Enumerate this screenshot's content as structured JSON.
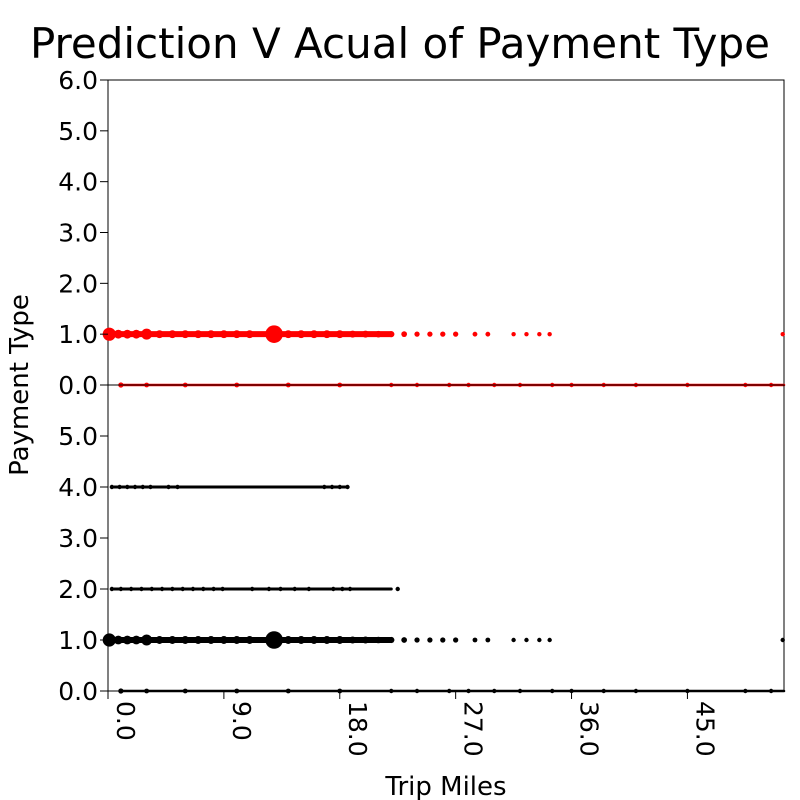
{
  "chart_data": {
    "type": "scatter",
    "title": "Prediction V Acual of Payment Type",
    "xlabel": "Trip Miles",
    "ylabel": "Payment Type",
    "xlim": [
      0,
      52.5
    ],
    "xticks": [
      "0.0",
      "9.0",
      "18.0",
      "27.0",
      "36.0",
      "45.0"
    ],
    "xtick_values": [
      0,
      9,
      18,
      27,
      36,
      45
    ],
    "grid": false,
    "legend": false,
    "panels": [
      {
        "name": "top",
        "color": "#ff0000",
        "ylim": [
          0,
          6
        ],
        "yticks": [
          "0.0",
          "1.0",
          "2.0",
          "3.0",
          "4.0",
          "5.0",
          "6.0"
        ],
        "ytick_values": [
          0,
          1,
          2,
          3,
          4,
          5,
          6
        ],
        "points": [
          {
            "x": 0.1,
            "y": 1,
            "s": 3.0
          },
          {
            "x": 3.0,
            "y": 1,
            "s": 2.5
          },
          {
            "x": 12.9,
            "y": 1,
            "s": 4.0
          },
          {
            "x": 0.8,
            "y": 1,
            "s": 2.0
          },
          {
            "x": 1.5,
            "y": 1,
            "s": 2.0
          },
          {
            "x": 2.2,
            "y": 1,
            "s": 2.0
          },
          {
            "x": 4.0,
            "y": 1,
            "s": 1.8
          },
          {
            "x": 5.0,
            "y": 1,
            "s": 1.8
          },
          {
            "x": 6.0,
            "y": 1,
            "s": 1.8
          },
          {
            "x": 7.0,
            "y": 1,
            "s": 1.8
          },
          {
            "x": 8.0,
            "y": 1,
            "s": 1.8
          },
          {
            "x": 9.0,
            "y": 1,
            "s": 1.8
          },
          {
            "x": 10.0,
            "y": 1,
            "s": 1.8
          },
          {
            "x": 11.0,
            "y": 1,
            "s": 1.8
          },
          {
            "x": 14.0,
            "y": 1,
            "s": 1.8
          },
          {
            "x": 15.0,
            "y": 1,
            "s": 1.8
          },
          {
            "x": 16.0,
            "y": 1,
            "s": 1.8
          },
          {
            "x": 17.0,
            "y": 1,
            "s": 1.8
          },
          {
            "x": 18.0,
            "y": 1,
            "s": 1.8
          },
          {
            "x": 19.0,
            "y": 1,
            "s": 1.6
          },
          {
            "x": 20.0,
            "y": 1,
            "s": 1.6
          },
          {
            "x": 21.0,
            "y": 1,
            "s": 1.5
          },
          {
            "x": 22.0,
            "y": 1,
            "s": 1.4
          },
          {
            "x": 23.0,
            "y": 1,
            "s": 1.3
          },
          {
            "x": 24.0,
            "y": 1,
            "s": 1.2
          },
          {
            "x": 25.0,
            "y": 1,
            "s": 1.2
          },
          {
            "x": 26.0,
            "y": 1,
            "s": 1.2
          },
          {
            "x": 27.0,
            "y": 1,
            "s": 1.2
          },
          {
            "x": 28.5,
            "y": 1,
            "s": 1.1
          },
          {
            "x": 29.5,
            "y": 1,
            "s": 1.1
          },
          {
            "x": 31.5,
            "y": 1,
            "s": 1.0
          },
          {
            "x": 32.5,
            "y": 1,
            "s": 1.0
          },
          {
            "x": 33.5,
            "y": 1,
            "s": 1.0
          },
          {
            "x": 34.3,
            "y": 1,
            "s": 1.0
          },
          {
            "x": 52.4,
            "y": 1,
            "s": 1.0
          },
          {
            "x": 1.0,
            "y": 0,
            "s": 1.2
          },
          {
            "x": 3.0,
            "y": 0,
            "s": 1.1
          },
          {
            "x": 6.0,
            "y": 0,
            "s": 1.1
          },
          {
            "x": 10.0,
            "y": 0,
            "s": 1.1
          },
          {
            "x": 14.0,
            "y": 0,
            "s": 1.1
          },
          {
            "x": 18.0,
            "y": 0,
            "s": 1.1
          },
          {
            "x": 22.0,
            "y": 0,
            "s": 1.0
          },
          {
            "x": 24.0,
            "y": 0,
            "s": 1.0
          },
          {
            "x": 26.5,
            "y": 0,
            "s": 1.0
          },
          {
            "x": 28.0,
            "y": 0,
            "s": 1.0
          },
          {
            "x": 30.0,
            "y": 0,
            "s": 1.0
          },
          {
            "x": 32.0,
            "y": 0,
            "s": 1.0
          },
          {
            "x": 34.5,
            "y": 0,
            "s": 1.0
          },
          {
            "x": 36.0,
            "y": 0,
            "s": 1.0
          },
          {
            "x": 38.5,
            "y": 0,
            "s": 1.0
          },
          {
            "x": 41.0,
            "y": 0,
            "s": 1.0
          },
          {
            "x": 45.0,
            "y": 0,
            "s": 1.0
          },
          {
            "x": 49.5,
            "y": 0,
            "s": 1.0
          },
          {
            "x": 51.5,
            "y": 0,
            "s": 1.0
          }
        ]
      },
      {
        "name": "bottom",
        "color": "#000000",
        "ylim": [
          0,
          6
        ],
        "yticks": [
          "0.0",
          "1.0",
          "2.0",
          "3.0",
          "4.0",
          "5.0"
        ],
        "ytick_values": [
          0,
          1,
          2,
          3,
          4,
          5
        ],
        "points": [
          {
            "x": 0.1,
            "y": 1,
            "s": 3.0
          },
          {
            "x": 3.0,
            "y": 1,
            "s": 2.5
          },
          {
            "x": 12.9,
            "y": 1,
            "s": 4.0
          },
          {
            "x": 0.8,
            "y": 1,
            "s": 2.0
          },
          {
            "x": 1.5,
            "y": 1,
            "s": 2.0
          },
          {
            "x": 2.2,
            "y": 1,
            "s": 2.0
          },
          {
            "x": 4.0,
            "y": 1,
            "s": 1.8
          },
          {
            "x": 5.0,
            "y": 1,
            "s": 1.8
          },
          {
            "x": 6.0,
            "y": 1,
            "s": 1.8
          },
          {
            "x": 7.0,
            "y": 1,
            "s": 1.8
          },
          {
            "x": 8.0,
            "y": 1,
            "s": 1.8
          },
          {
            "x": 9.0,
            "y": 1,
            "s": 1.8
          },
          {
            "x": 10.0,
            "y": 1,
            "s": 1.8
          },
          {
            "x": 11.0,
            "y": 1,
            "s": 1.8
          },
          {
            "x": 14.0,
            "y": 1,
            "s": 1.8
          },
          {
            "x": 15.0,
            "y": 1,
            "s": 1.8
          },
          {
            "x": 16.0,
            "y": 1,
            "s": 1.8
          },
          {
            "x": 17.0,
            "y": 1,
            "s": 1.8
          },
          {
            "x": 18.0,
            "y": 1,
            "s": 1.8
          },
          {
            "x": 19.0,
            "y": 1,
            "s": 1.6
          },
          {
            "x": 20.0,
            "y": 1,
            "s": 1.6
          },
          {
            "x": 21.0,
            "y": 1,
            "s": 1.5
          },
          {
            "x": 22.0,
            "y": 1,
            "s": 1.4
          },
          {
            "x": 23.0,
            "y": 1,
            "s": 1.3
          },
          {
            "x": 24.0,
            "y": 1,
            "s": 1.2
          },
          {
            "x": 25.0,
            "y": 1,
            "s": 1.2
          },
          {
            "x": 26.0,
            "y": 1,
            "s": 1.2
          },
          {
            "x": 27.0,
            "y": 1,
            "s": 1.2
          },
          {
            "x": 28.5,
            "y": 1,
            "s": 1.1
          },
          {
            "x": 29.5,
            "y": 1,
            "s": 1.1
          },
          {
            "x": 31.5,
            "y": 1,
            "s": 1.0
          },
          {
            "x": 32.5,
            "y": 1,
            "s": 1.0
          },
          {
            "x": 33.5,
            "y": 1,
            "s": 1.0
          },
          {
            "x": 34.3,
            "y": 1,
            "s": 1.0
          },
          {
            "x": 52.4,
            "y": 1,
            "s": 1.0
          },
          {
            "x": 0.3,
            "y": 4,
            "s": 1.0
          },
          {
            "x": 0.9,
            "y": 4,
            "s": 1.0
          },
          {
            "x": 1.5,
            "y": 4,
            "s": 1.0
          },
          {
            "x": 2.1,
            "y": 4,
            "s": 1.0
          },
          {
            "x": 2.7,
            "y": 4,
            "s": 1.0
          },
          {
            "x": 3.3,
            "y": 4,
            "s": 1.0
          },
          {
            "x": 4.7,
            "y": 4,
            "s": 1.0
          },
          {
            "x": 5.4,
            "y": 4,
            "s": 1.0
          },
          {
            "x": 16.8,
            "y": 4,
            "s": 1.0
          },
          {
            "x": 17.4,
            "y": 4,
            "s": 1.0
          },
          {
            "x": 18.0,
            "y": 4,
            "s": 1.0
          },
          {
            "x": 18.6,
            "y": 4,
            "s": 1.0
          },
          {
            "x": 0.3,
            "y": 2,
            "s": 1.0
          },
          {
            "x": 1.0,
            "y": 2,
            "s": 1.0
          },
          {
            "x": 1.8,
            "y": 2,
            "s": 1.0
          },
          {
            "x": 2.6,
            "y": 2,
            "s": 1.0
          },
          {
            "x": 3.4,
            "y": 2,
            "s": 1.0
          },
          {
            "x": 4.2,
            "y": 2,
            "s": 1.0
          },
          {
            "x": 5.0,
            "y": 2,
            "s": 1.0
          },
          {
            "x": 5.8,
            "y": 2,
            "s": 1.0
          },
          {
            "x": 6.6,
            "y": 2,
            "s": 1.0
          },
          {
            "x": 7.4,
            "y": 2,
            "s": 1.0
          },
          {
            "x": 8.2,
            "y": 2,
            "s": 1.0
          },
          {
            "x": 8.9,
            "y": 2,
            "s": 1.0
          },
          {
            "x": 11.2,
            "y": 2,
            "s": 1.0
          },
          {
            "x": 12.5,
            "y": 2,
            "s": 1.0
          },
          {
            "x": 13.4,
            "y": 2,
            "s": 1.0
          },
          {
            "x": 14.5,
            "y": 2,
            "s": 1.0
          },
          {
            "x": 15.6,
            "y": 2,
            "s": 1.0
          },
          {
            "x": 17.5,
            "y": 2,
            "s": 1.0
          },
          {
            "x": 18.2,
            "y": 2,
            "s": 1.0
          },
          {
            "x": 18.8,
            "y": 2,
            "s": 1.0
          },
          {
            "x": 22.5,
            "y": 2,
            "s": 1.0
          },
          {
            "x": 1.0,
            "y": 0,
            "s": 1.2
          },
          {
            "x": 3.0,
            "y": 0,
            "s": 1.1
          },
          {
            "x": 6.0,
            "y": 0,
            "s": 1.1
          },
          {
            "x": 10.0,
            "y": 0,
            "s": 1.1
          },
          {
            "x": 14.0,
            "y": 0,
            "s": 1.1
          },
          {
            "x": 18.0,
            "y": 0,
            "s": 1.1
          },
          {
            "x": 22.0,
            "y": 0,
            "s": 1.0
          },
          {
            "x": 24.0,
            "y": 0,
            "s": 1.0
          },
          {
            "x": 26.5,
            "y": 0,
            "s": 1.0
          },
          {
            "x": 28.0,
            "y": 0,
            "s": 1.0
          },
          {
            "x": 30.0,
            "y": 0,
            "s": 1.0
          },
          {
            "x": 32.0,
            "y": 0,
            "s": 1.0
          },
          {
            "x": 34.5,
            "y": 0,
            "s": 1.0
          },
          {
            "x": 36.0,
            "y": 0,
            "s": 1.0
          },
          {
            "x": 38.5,
            "y": 0,
            "s": 1.0
          },
          {
            "x": 41.0,
            "y": 0,
            "s": 1.0
          },
          {
            "x": 45.0,
            "y": 0,
            "s": 1.0
          },
          {
            "x": 49.5,
            "y": 0,
            "s": 1.0
          },
          {
            "x": 51.5,
            "y": 0,
            "s": 1.0
          }
        ]
      }
    ]
  }
}
